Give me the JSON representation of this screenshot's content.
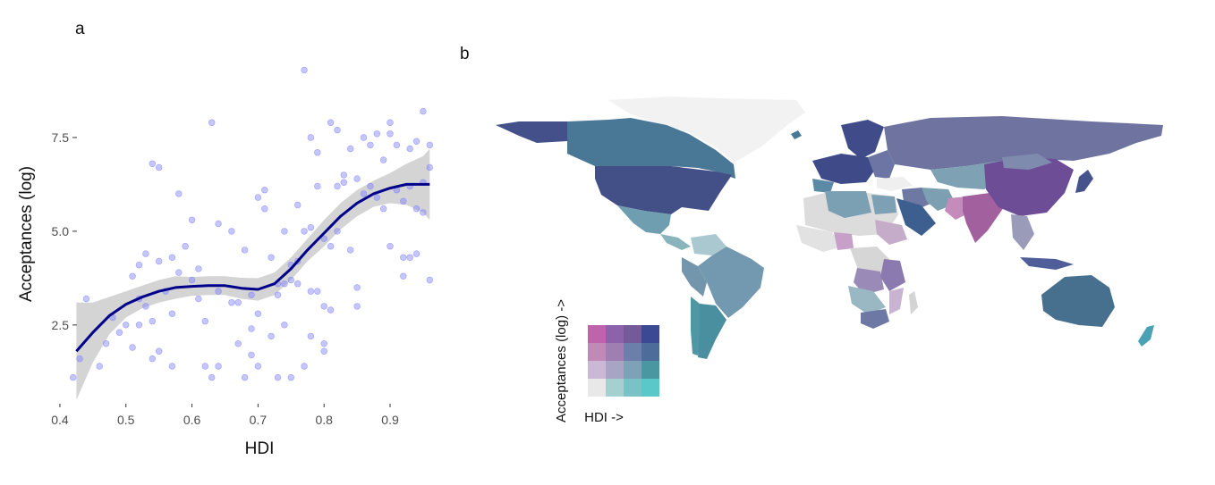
{
  "panels": {
    "a": "a",
    "b": "b"
  },
  "chart_data": [
    {
      "type": "scatter",
      "panel": "a",
      "title": "",
      "xlabel": "HDI",
      "ylabel": "Acceptances (log)",
      "xlim": [
        0.415,
        0.965
      ],
      "ylim": [
        0.4,
        9.5
      ],
      "xticks": [
        {
          "value": 0.4,
          "label": "0.4"
        },
        {
          "value": 0.5,
          "label": "0.5"
        },
        {
          "value": 0.6,
          "label": "0.6"
        },
        {
          "value": 0.7,
          "label": "0.7"
        },
        {
          "value": 0.8,
          "label": "0.8"
        },
        {
          "value": 0.9,
          "label": "0.9"
        }
      ],
      "yticks": [
        {
          "value": 2.5,
          "label": "2.5"
        },
        {
          "value": 5.0,
          "label": "5.0"
        },
        {
          "value": 7.5,
          "label": "7.5"
        }
      ],
      "grid": false,
      "point_color": "#8080ff",
      "line_color": "#00008b",
      "band_color": "#bdbdbd",
      "points": [
        [
          0.42,
          1.1
        ],
        [
          0.43,
          1.6
        ],
        [
          0.44,
          3.2
        ],
        [
          0.46,
          1.4
        ],
        [
          0.47,
          2.0
        ],
        [
          0.48,
          2.7
        ],
        [
          0.49,
          2.3
        ],
        [
          0.5,
          2.5
        ],
        [
          0.51,
          3.8
        ],
        [
          0.51,
          1.9
        ],
        [
          0.52,
          4.1
        ],
        [
          0.52,
          2.5
        ],
        [
          0.53,
          4.4
        ],
        [
          0.53,
          3.0
        ],
        [
          0.54,
          2.6
        ],
        [
          0.54,
          1.6
        ],
        [
          0.54,
          6.8
        ],
        [
          0.55,
          6.7
        ],
        [
          0.55,
          1.8
        ],
        [
          0.55,
          4.2
        ],
        [
          0.56,
          3.4
        ],
        [
          0.57,
          1.4
        ],
        [
          0.57,
          4.3
        ],
        [
          0.58,
          6.0
        ],
        [
          0.58,
          3.9
        ],
        [
          0.59,
          4.6
        ],
        [
          0.6,
          5.3
        ],
        [
          0.6,
          3.7
        ],
        [
          0.61,
          4.0
        ],
        [
          0.61,
          3.2
        ],
        [
          0.62,
          2.6
        ],
        [
          0.62,
          1.4
        ],
        [
          0.63,
          1.1
        ],
        [
          0.63,
          7.9
        ],
        [
          0.64,
          1.4
        ],
        [
          0.64,
          3.4
        ],
        [
          0.64,
          5.2
        ],
        [
          0.66,
          5.0
        ],
        [
          0.67,
          2.0
        ],
        [
          0.67,
          3.1
        ],
        [
          0.68,
          1.1
        ],
        [
          0.68,
          4.5
        ],
        [
          0.69,
          2.4
        ],
        [
          0.69,
          3.3
        ],
        [
          0.69,
          1.7
        ],
        [
          0.7,
          1.4
        ],
        [
          0.7,
          2.8
        ],
        [
          0.7,
          5.9
        ],
        [
          0.71,
          6.1
        ],
        [
          0.71,
          5.6
        ],
        [
          0.72,
          2.2
        ],
        [
          0.72,
          4.3
        ],
        [
          0.73,
          3.6
        ],
        [
          0.73,
          3.3
        ],
        [
          0.73,
          1.1
        ],
        [
          0.74,
          5.0
        ],
        [
          0.74,
          3.6
        ],
        [
          0.74,
          2.5
        ],
        [
          0.75,
          4.1
        ],
        [
          0.75,
          1.1
        ],
        [
          0.75,
          3.7
        ],
        [
          0.76,
          4.2
        ],
        [
          0.76,
          3.6
        ],
        [
          0.76,
          5.7
        ],
        [
          0.77,
          1.4
        ],
        [
          0.77,
          5.0
        ],
        [
          0.77,
          9.3
        ],
        [
          0.78,
          3.4
        ],
        [
          0.78,
          5.1
        ],
        [
          0.78,
          2.2
        ],
        [
          0.78,
          7.5
        ],
        [
          0.79,
          3.4
        ],
        [
          0.79,
          6.2
        ],
        [
          0.79,
          7.1
        ],
        [
          0.8,
          3.0
        ],
        [
          0.8,
          2.0
        ],
        [
          0.8,
          1.8
        ],
        [
          0.8,
          4.8
        ],
        [
          0.81,
          2.9
        ],
        [
          0.81,
          7.9
        ],
        [
          0.81,
          4.6
        ],
        [
          0.82,
          5.0
        ],
        [
          0.82,
          6.2
        ],
        [
          0.82,
          7.7
        ],
        [
          0.83,
          6.5
        ],
        [
          0.83,
          6.3
        ],
        [
          0.84,
          7.2
        ],
        [
          0.84,
          4.5
        ],
        [
          0.85,
          6.4
        ],
        [
          0.85,
          3.0
        ],
        [
          0.85,
          3.5
        ],
        [
          0.86,
          6.0
        ],
        [
          0.86,
          7.5
        ],
        [
          0.87,
          6.2
        ],
        [
          0.87,
          7.3
        ],
        [
          0.88,
          5.9
        ],
        [
          0.88,
          7.6
        ],
        [
          0.89,
          5.6
        ],
        [
          0.89,
          6.9
        ],
        [
          0.9,
          7.6
        ],
        [
          0.9,
          4.6
        ],
        [
          0.9,
          7.9
        ],
        [
          0.91,
          6.1
        ],
        [
          0.91,
          7.3
        ],
        [
          0.92,
          4.3
        ],
        [
          0.92,
          3.8
        ],
        [
          0.92,
          5.8
        ],
        [
          0.93,
          6.2
        ],
        [
          0.93,
          7.2
        ],
        [
          0.93,
          4.3
        ],
        [
          0.94,
          5.6
        ],
        [
          0.94,
          7.4
        ],
        [
          0.94,
          4.4
        ],
        [
          0.95,
          5.5
        ],
        [
          0.95,
          6.3
        ],
        [
          0.95,
          8.2
        ],
        [
          0.96,
          3.7
        ],
        [
          0.96,
          6.7
        ],
        [
          0.96,
          7.3
        ],
        [
          0.66,
          3.1
        ],
        [
          0.52,
          3.2
        ],
        [
          0.57,
          2.8
        ]
      ],
      "smooth": {
        "x": [
          0.425,
          0.45,
          0.475,
          0.5,
          0.525,
          0.55,
          0.575,
          0.6,
          0.625,
          0.65,
          0.675,
          0.7,
          0.725,
          0.75,
          0.775,
          0.8,
          0.825,
          0.85,
          0.875,
          0.9,
          0.925,
          0.95,
          0.96
        ],
        "y": [
          1.8,
          2.3,
          2.75,
          3.05,
          3.25,
          3.4,
          3.5,
          3.53,
          3.55,
          3.55,
          3.48,
          3.45,
          3.6,
          4.0,
          4.5,
          4.95,
          5.4,
          5.75,
          6.0,
          6.15,
          6.25,
          6.25,
          6.25
        ],
        "lower": [
          0.5,
          1.5,
          2.25,
          2.7,
          2.95,
          3.1,
          3.2,
          3.28,
          3.3,
          3.3,
          3.2,
          3.15,
          3.3,
          3.7,
          4.2,
          4.6,
          5.05,
          5.4,
          5.65,
          5.75,
          5.7,
          5.5,
          5.3
        ],
        "upper": [
          3.1,
          3.1,
          3.25,
          3.4,
          3.55,
          3.7,
          3.8,
          3.78,
          3.8,
          3.8,
          3.76,
          3.75,
          3.9,
          4.3,
          4.8,
          5.3,
          5.75,
          6.1,
          6.35,
          6.55,
          6.8,
          7.0,
          7.2
        ]
      }
    },
    {
      "type": "map",
      "panel": "b",
      "title": "",
      "legend": {
        "type": "bivariate",
        "xlabel": "HDI ->",
        "ylabel": "Acceptances (log) ->",
        "grid": [
          [
            "#be64ac",
            "#8c62aa",
            "#755a9a",
            "#3b4994"
          ],
          [
            "#c189b5",
            "#9f7fb1",
            "#6c7faa",
            "#4e6c9a"
          ],
          [
            "#cbb8d7",
            "#a8a4c4",
            "#7da2b8",
            "#4a97a2"
          ],
          [
            "#e8e8e8",
            "#a6cfd0",
            "#79c2c6",
            "#5ac8c8"
          ]
        ]
      }
    }
  ]
}
